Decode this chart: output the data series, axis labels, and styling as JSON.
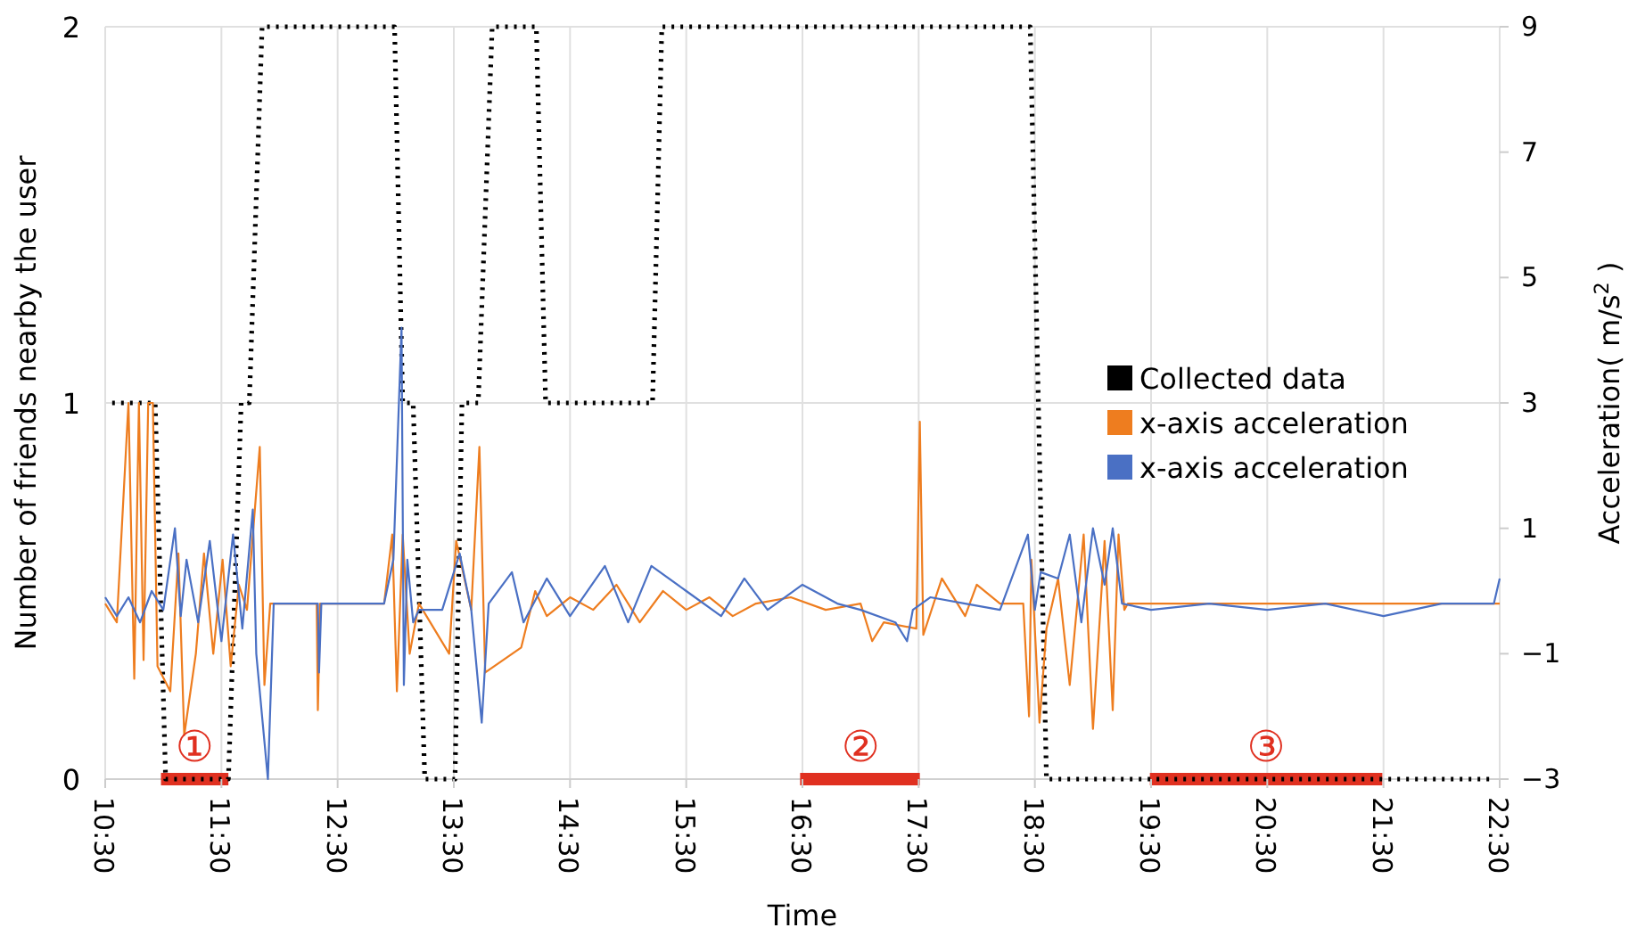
{
  "chart_data": {
    "type": "line",
    "xlabel": "Time",
    "ylabel": "Number of friends nearby the user",
    "y2label": "Acceleration( m/s$^{2}$ )",
    "xlim": [
      10.5,
      22.5
    ],
    "xticks": [
      {
        "value": 10.5,
        "label": "10:30"
      },
      {
        "value": 11.5,
        "label": "11:30"
      },
      {
        "value": 12.5,
        "label": "12:30"
      },
      {
        "value": 13.5,
        "label": "13:30"
      },
      {
        "value": 14.5,
        "label": "14:30"
      },
      {
        "value": 15.5,
        "label": "15:30"
      },
      {
        "value": 16.5,
        "label": "16:30"
      },
      {
        "value": 17.5,
        "label": "17:30"
      },
      {
        "value": 18.5,
        "label": "18:30"
      },
      {
        "value": 19.5,
        "label": "19:30"
      },
      {
        "value": 20.5,
        "label": "20:30"
      },
      {
        "value": 21.5,
        "label": "21:30"
      },
      {
        "value": 22.5,
        "label": "22:30"
      }
    ],
    "ylim": [
      0,
      2
    ],
    "yticks": [
      0,
      1,
      2
    ],
    "y2lim": [
      -3,
      9
    ],
    "y2ticks": [
      {
        "value": -3,
        "label": "−3"
      },
      {
        "value": -1,
        "label": "−1"
      },
      1,
      3,
      5,
      7,
      9
    ],
    "grid": true,
    "legend": "right",
    "marker": "none",
    "series": [
      {
        "color": "#e03020",
        "line_style": "solid",
        "x": [
          10.98,
          11.56,
          14.0,
          16.48,
          17.51,
          18.5,
          19.49,
          21.49
        ],
        "values": [
          0,
          0,
          null,
          0,
          0,
          null,
          0,
          0
        ]
      },
      {
        "name": "Collected data",
        "color": "#000000",
        "line_style": "dotted",
        "x": [
          10.56,
          10.93,
          11.02,
          11.56,
          11.67,
          11.74,
          11.85,
          12.99,
          13.06,
          13.15,
          13.25,
          13.51,
          13.57,
          13.71,
          13.83,
          14.21,
          14.29,
          15.21,
          15.29,
          18.46,
          18.6,
          22.45
        ],
        "values": [
          1,
          1,
          0,
          0,
          1,
          1,
          2,
          2,
          1,
          1,
          0,
          0,
          1,
          1,
          2,
          2,
          1,
          1,
          2,
          2,
          0,
          0
        ]
      },
      {
        "name": "x-axis acceleration",
        "color": "#ee7d1f",
        "axis": "y2",
        "line_style": "solid",
        "x": [
          10.5,
          10.6,
          10.7,
          10.75,
          10.79,
          10.83,
          10.87,
          10.91,
          10.95,
          11.06,
          11.13,
          11.18,
          11.28,
          11.35,
          11.43,
          11.51,
          11.58,
          11.65,
          11.72,
          11.83,
          11.87,
          11.92,
          12.32,
          12.33,
          12.35,
          12.9,
          12.97,
          13.01,
          13.06,
          13.12,
          13.2,
          13.46,
          13.52,
          13.65,
          13.72,
          13.77,
          14.08,
          14.2,
          14.3,
          14.5,
          14.7,
          14.9,
          15.1,
          15.3,
          15.5,
          15.7,
          15.9,
          16.1,
          16.4,
          16.7,
          17.0,
          17.1,
          17.2,
          17.48,
          17.51,
          17.54,
          17.7,
          17.9,
          18.0,
          18.2,
          18.4,
          18.45,
          18.47,
          18.54,
          18.6,
          18.7,
          18.8,
          18.92,
          19.0,
          19.1,
          19.17,
          19.22,
          19.27,
          19.3,
          20.0,
          21.0,
          22.0,
          22.5
        ],
        "values": [
          -0.2,
          -0.5,
          3.0,
          -1.4,
          3.0,
          -1.1,
          3.0,
          3.0,
          -1.2,
          -1.6,
          0.6,
          -2.3,
          -1.0,
          0.6,
          -1.0,
          0.5,
          -1.2,
          0.1,
          -0.3,
          2.3,
          -1.5,
          -0.2,
          -0.2,
          -1.9,
          -0.2,
          -0.2,
          0.9,
          -1.6,
          0.9,
          -1.0,
          -0.2,
          -1.0,
          0.8,
          -0.3,
          2.3,
          -1.3,
          -0.9,
          0.0,
          -0.4,
          -0.1,
          -0.3,
          0.1,
          -0.5,
          0.0,
          -0.3,
          -0.1,
          -0.4,
          -0.2,
          -0.1,
          -0.3,
          -0.2,
          -0.8,
          -0.5,
          -0.6,
          2.7,
          -0.7,
          0.2,
          -0.4,
          0.1,
          -0.2,
          -0.2,
          -2.0,
          0.5,
          -2.1,
          -0.6,
          0.2,
          -1.5,
          0.9,
          -2.2,
          0.8,
          -1.9,
          0.9,
          -0.3,
          -0.2,
          -0.2,
          -0.2,
          -0.2,
          -0.2
        ]
      },
      {
        "name": "x-axis acceleration",
        "color": "#4a70c4",
        "axis": "y2",
        "line_style": "solid",
        "x": [
          10.5,
          10.6,
          10.7,
          10.8,
          10.9,
          11.0,
          11.1,
          11.15,
          11.2,
          11.3,
          11.4,
          11.5,
          11.6,
          11.68,
          11.77,
          11.8,
          11.9,
          11.95,
          12.33,
          12.34,
          12.36,
          12.9,
          12.98,
          13.05,
          13.07,
          13.1,
          13.15,
          13.2,
          13.4,
          13.55,
          13.65,
          13.74,
          13.8,
          14.0,
          14.1,
          14.3,
          14.5,
          14.8,
          15.0,
          15.2,
          15.5,
          15.8,
          16.0,
          16.2,
          16.5,
          16.8,
          17.0,
          17.3,
          17.4,
          17.45,
          17.6,
          17.9,
          18.2,
          18.44,
          18.5,
          18.55,
          18.7,
          18.8,
          18.9,
          19.0,
          19.1,
          19.17,
          19.25,
          19.5,
          20.0,
          20.5,
          21.0,
          21.5,
          22.0,
          22.45,
          22.5
        ],
        "values": [
          -0.1,
          -0.4,
          -0.1,
          -0.5,
          0.0,
          -0.3,
          1.0,
          -0.4,
          0.5,
          -0.5,
          0.8,
          -0.8,
          0.9,
          -0.6,
          1.3,
          -1.0,
          -3.0,
          -0.2,
          -0.2,
          -1.3,
          -0.2,
          -0.2,
          0.5,
          4.2,
          -1.5,
          0.5,
          -0.5,
          -0.3,
          -0.3,
          0.6,
          -0.3,
          -2.1,
          -0.2,
          0.3,
          -0.5,
          0.2,
          -0.4,
          0.4,
          -0.5,
          0.4,
          0.0,
          -0.4,
          0.2,
          -0.3,
          0.1,
          -0.2,
          -0.3,
          -0.5,
          -0.8,
          -0.3,
          -0.1,
          -0.2,
          -0.3,
          0.9,
          -0.3,
          0.3,
          0.2,
          0.9,
          -0.5,
          1.0,
          0.1,
          1.0,
          -0.2,
          -0.3,
          -0.2,
          -0.3,
          -0.2,
          -0.4,
          -0.2,
          -0.2,
          0.2
        ]
      }
    ],
    "annotations": [
      {
        "text": "①",
        "x": 11.27,
        "y": 0
      },
      {
        "text": "②",
        "x": 17.0,
        "y": 0
      },
      {
        "text": "③",
        "x": 20.49,
        "y": 0
      }
    ]
  }
}
